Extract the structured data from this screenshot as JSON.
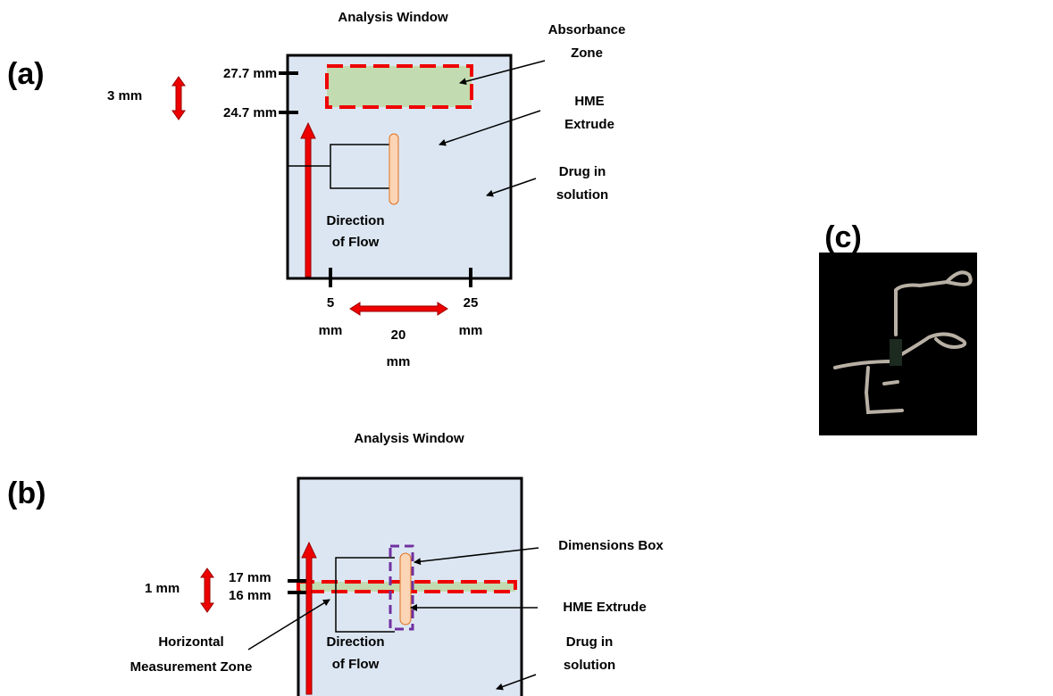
{
  "panel_a": {
    "label": "(a)",
    "title": "Analysis Window",
    "absorbance_zone": [
      "Absorbance",
      "Zone"
    ],
    "hme_extrude": [
      "HME",
      "Extrude"
    ],
    "drug_in_solution": [
      "Drug in",
      "solution"
    ],
    "tick_top": "27.7 mm",
    "tick_bottom": "24.7 mm",
    "height_span": "3 mm",
    "direction_of_flow": [
      "Direction",
      "of Flow"
    ],
    "x_left": [
      "5",
      "mm"
    ],
    "x_right": [
      "25",
      "mm"
    ],
    "width_span": [
      "20",
      "mm"
    ]
  },
  "panel_b": {
    "label": "(b)",
    "title": "Analysis Window",
    "dimensions_box": "Dimensions Box",
    "tick_top": "17 mm",
    "tick_bottom": "16 mm",
    "height_span": "1 mm",
    "hme_extrude": "HME Extrude",
    "drug_in_solution": [
      "Drug in",
      "solution"
    ],
    "horizontal_zone": [
      "Horizontal",
      "Measurement Zone"
    ],
    "direction_of_flow": [
      "Direction",
      "of Flow"
    ]
  },
  "panel_c": {
    "label": "(c)"
  }
}
